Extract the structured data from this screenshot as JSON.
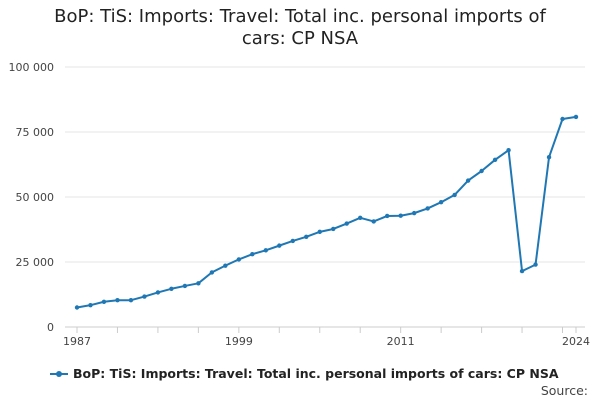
{
  "title_line1": "BoP: TiS: Imports: Travel: Total inc. personal imports of",
  "title_line2": "cars: CP NSA",
  "legend_label": "BoP: TiS: Imports: Travel: Total inc. personal imports of cars: CP NSA",
  "source_label": "Source:",
  "colors": {
    "series": "#1f77b4",
    "grid": "#e6e6e6",
    "axis": "#cccccc"
  },
  "chart_data": {
    "type": "line",
    "title": "BoP: TiS: Imports: Travel: Total inc. personal imports of cars: CP NSA",
    "xlabel": "",
    "ylabel": "",
    "xlim": [
      1987,
      2024
    ],
    "ylim": [
      0,
      100000
    ],
    "yticks": [
      0,
      25000,
      50000,
      75000,
      100000
    ],
    "ytick_labels": [
      "0",
      "25 000",
      "50 000",
      "75 000",
      "100 000"
    ],
    "xticks": [
      1987,
      1999,
      2011,
      2024
    ],
    "xtick_labels": [
      "1987",
      "1999",
      "2011",
      "2024"
    ],
    "grid": true,
    "legend": "bottom",
    "series": [
      {
        "name": "BoP: TiS: Imports: Travel: Total inc. personal imports of cars: CP NSA",
        "x": [
          1987,
          1988,
          1989,
          1990,
          1991,
          1992,
          1993,
          1994,
          1995,
          1996,
          1997,
          1998,
          1999,
          2000,
          2001,
          2002,
          2003,
          2004,
          2005,
          2006,
          2007,
          2008,
          2009,
          2010,
          2011,
          2012,
          2013,
          2014,
          2015,
          2016,
          2017,
          2018,
          2019,
          2020,
          2021,
          2022,
          2023,
          2024
        ],
        "values": [
          7500,
          8400,
          9700,
          10300,
          10300,
          11700,
          13300,
          14700,
          15800,
          16800,
          21000,
          23600,
          26000,
          28000,
          29500,
          31300,
          33100,
          34700,
          36600,
          37700,
          39800,
          42000,
          40600,
          42700,
          42800,
          43800,
          45600,
          48000,
          50800,
          56300,
          60000,
          64300,
          68000,
          21500,
          24000,
          65300,
          80000,
          80800
        ]
      }
    ]
  }
}
